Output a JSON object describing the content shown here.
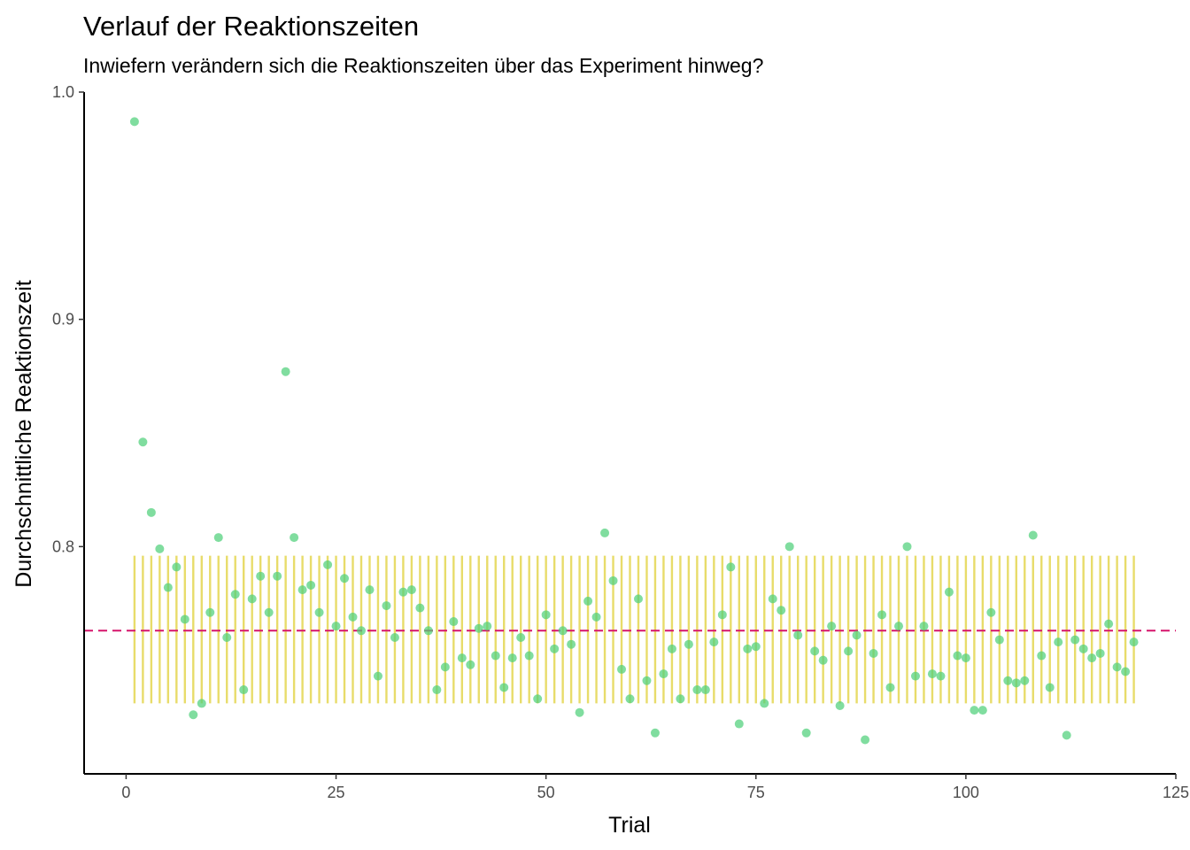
{
  "chart_data": {
    "type": "scatter",
    "title": "Verlauf der Reaktionszeiten",
    "subtitle": "Inwiefern verändern sich die Reaktionszeiten über das Experiment hinweg?",
    "xlabel": "Trial",
    "ylabel": "Durchschnittliche Reaktionszeit",
    "xlim": [
      -5,
      125
    ],
    "ylim": [
      0.7,
      1.0
    ],
    "x_ticks": [
      0,
      25,
      50,
      75,
      100,
      125
    ],
    "y_ticks": [
      0.8,
      0.9,
      1.0
    ],
    "x_tick_labels": [
      "0",
      "25",
      "50",
      "75",
      "100",
      "125"
    ],
    "y_tick_labels": [
      "0.8",
      "0.9",
      "1.0"
    ],
    "grid": false,
    "point_color": "#4fd07a",
    "range_line_color": "#e8dc6a",
    "mean_line_color": "#d6156b",
    "mean_line": 0.763,
    "range_band": [
      0.731,
      0.796
    ],
    "x": [
      1,
      2,
      3,
      4,
      5,
      6,
      7,
      8,
      9,
      10,
      11,
      12,
      13,
      14,
      15,
      16,
      17,
      18,
      19,
      20,
      21,
      22,
      23,
      24,
      25,
      26,
      27,
      28,
      29,
      30,
      31,
      32,
      33,
      34,
      35,
      36,
      37,
      38,
      39,
      40,
      41,
      42,
      43,
      44,
      45,
      46,
      47,
      48,
      49,
      50,
      51,
      52,
      53,
      54,
      55,
      56,
      57,
      58,
      59,
      60,
      61,
      62,
      63,
      64,
      65,
      66,
      67,
      68,
      69,
      70,
      71,
      72,
      73,
      74,
      75,
      76,
      77,
      78,
      79,
      80,
      81,
      82,
      83,
      84,
      85,
      86,
      87,
      88,
      89,
      90,
      91,
      92,
      93,
      94,
      95,
      96,
      97,
      98,
      99,
      100,
      101,
      102,
      103,
      104,
      105,
      106,
      107,
      108,
      109,
      110,
      111,
      112,
      113,
      114,
      115,
      116,
      117,
      118,
      119,
      120
    ],
    "y": [
      0.987,
      0.846,
      0.815,
      0.799,
      0.782,
      0.791,
      0.768,
      0.726,
      0.731,
      0.771,
      0.804,
      0.76,
      0.779,
      0.737,
      0.777,
      0.787,
      0.771,
      0.787,
      0.877,
      0.804,
      0.781,
      0.783,
      0.771,
      0.792,
      0.765,
      0.786,
      0.769,
      0.763,
      0.781,
      0.743,
      0.774,
      0.76,
      0.78,
      0.781,
      0.773,
      0.763,
      0.737,
      0.747,
      0.767,
      0.751,
      0.748,
      0.764,
      0.765,
      0.752,
      0.738,
      0.751,
      0.76,
      0.752,
      0.733,
      0.77,
      0.755,
      0.763,
      0.757,
      0.727,
      0.776,
      0.769,
      0.806,
      0.785,
      0.746,
      0.733,
      0.777,
      0.741,
      0.718,
      0.744,
      0.755,
      0.733,
      0.757,
      0.737,
      0.737,
      0.758,
      0.77,
      0.791,
      0.722,
      0.755,
      0.756,
      0.731,
      0.777,
      0.772,
      0.8,
      0.761,
      0.718,
      0.754,
      0.75,
      0.765,
      0.73,
      0.754,
      0.761,
      0.715,
      0.753,
      0.77,
      0.738,
      0.765,
      0.8,
      0.743,
      0.765,
      0.744,
      0.743,
      0.78,
      0.752,
      0.751,
      0.728,
      0.728,
      0.771,
      0.759,
      0.741,
      0.74,
      0.741,
      0.805,
      0.752,
      0.738,
      0.758,
      0.717,
      0.759,
      0.755,
      0.751,
      0.753,
      0.766,
      0.747,
      0.745,
      0.758
    ]
  }
}
